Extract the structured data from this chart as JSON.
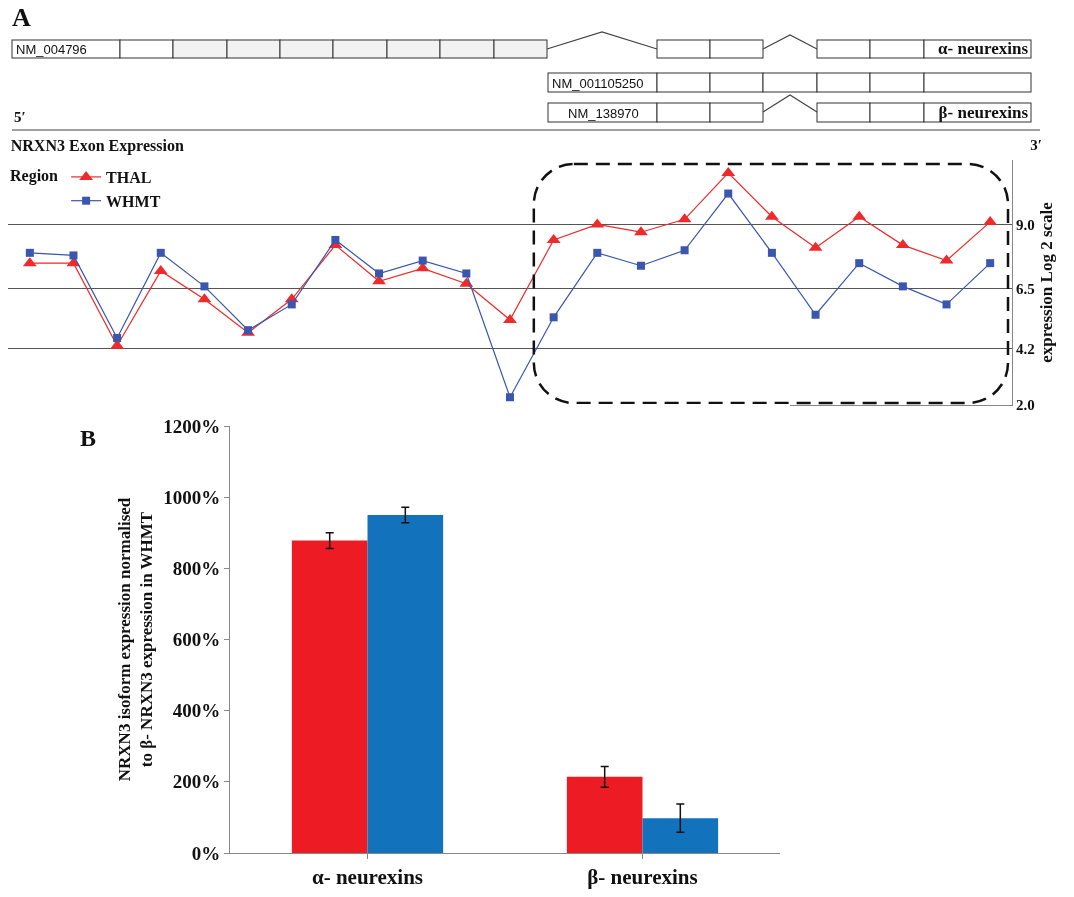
{
  "chart_data": [
    {
      "type": "line",
      "title": "NRXN3 Exon Expression",
      "ylabel": "expression Log 2 scale",
      "legend_title": "Region",
      "annotations": [
        "A",
        "NM_004796",
        "NM_001105250",
        "NM_138970",
        "α- neurexins",
        "β- neurexins",
        "5′",
        "3′"
      ],
      "categories": [
        null,
        null,
        null,
        null,
        null,
        null,
        null,
        null,
        null,
        null,
        null,
        null,
        null,
        null,
        null,
        null,
        null,
        null,
        null,
        null,
        null,
        null,
        null
      ],
      "series": [
        {
          "name": "THAL",
          "color": "#ee2a2a",
          "marker": "triangle",
          "values": [
            7.5,
            7.5,
            4.3,
            7.2,
            6.1,
            4.8,
            6.1,
            8.2,
            6.8,
            7.3,
            6.7,
            5.3,
            8.4,
            9.0,
            8.7,
            9.2,
            11.0,
            9.3,
            8.1,
            9.3,
            8.2,
            7.6,
            9.1
          ]
        },
        {
          "name": "WHMT",
          "color": "#3a56ae",
          "marker": "square",
          "values": [
            7.9,
            7.8,
            4.6,
            7.9,
            6.6,
            4.9,
            5.9,
            8.4,
            7.1,
            7.6,
            7.1,
            2.3,
            5.4,
            7.9,
            7.4,
            8.0,
            10.2,
            7.9,
            5.5,
            7.5,
            6.6,
            5.9,
            7.5
          ]
        }
      ],
      "ylim": [
        2.0,
        11.5
      ],
      "yticks": [
        {
          "value": 2.0,
          "label": "2.0"
        },
        {
          "value": 4.2,
          "label": "4.2"
        },
        {
          "value": 6.5,
          "label": "6.5"
        },
        {
          "value": 9.0,
          "label": "9.0"
        }
      ],
      "grid": "y",
      "legend": "top left",
      "tick_labels": "y"
    },
    {
      "type": "bar",
      "ylabel": "NRXN3 isoform expression normalised to β- NRXN3 expression in WHMT",
      "annotations": [
        "B"
      ],
      "categories": [
        "α- neurexins",
        "β- neurexins"
      ],
      "series": [
        {
          "color": "#ed1c24",
          "values": [
            878,
            214
          ],
          "errors": [
            22,
            29
          ]
        },
        {
          "color": "#1273bc",
          "values": [
            950,
            98
          ],
          "errors": [
            22,
            40
          ]
        }
      ],
      "ylim": [
        0,
        1200
      ],
      "yticks": [
        {
          "value": 0,
          "label": "0%"
        },
        {
          "value": 200,
          "label": "200%"
        },
        {
          "value": 400,
          "label": "400%"
        },
        {
          "value": 600,
          "label": "600%"
        },
        {
          "value": 800,
          "label": "800%"
        },
        {
          "value": 1000,
          "label": "1000%"
        },
        {
          "value": 1200,
          "label": "1200%"
        }
      ]
    }
  ]
}
